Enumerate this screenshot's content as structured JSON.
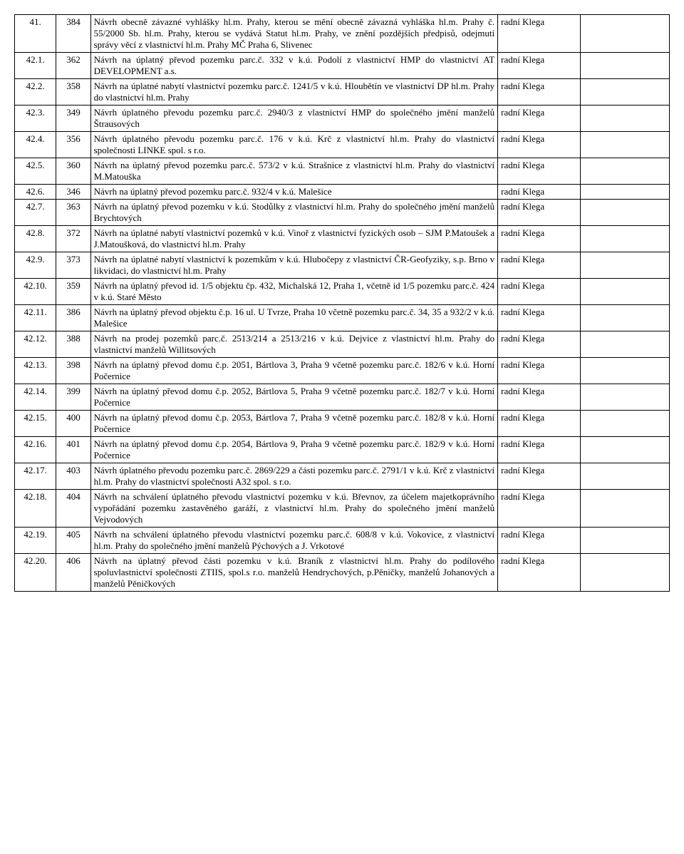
{
  "rows": [
    {
      "num": "41.",
      "id": "384",
      "desc": "Návrh obecně závazné vyhlášky hl.m. Prahy, kterou se mění obecně závazná vyhláška hl.m. Prahy č. 55/2000 Sb. hl.m. Prahy, kterou se vydává Statut hl.m. Prahy, ve znění pozdějších předpisů, odejmutí správy věcí z vlastnictví hl.m. Prahy MČ Praha 6, Slivenec",
      "who": "radní Klega"
    },
    {
      "num": "42.1.",
      "id": "362",
      "desc": "Návrh na úplatný převod pozemku parc.č. 332 v k.ú. Podolí z vlastnictví HMP do vlastnictví AT DEVELOPMENT a.s.",
      "who": "radní Klega"
    },
    {
      "num": "42.2.",
      "id": "358",
      "desc": "Návrh na úplatné nabytí vlastnictví pozemku parc.č. 1241/5 v k.ú. Hloubětín ve vlastnictví DP hl.m. Prahy do vlastnictví hl.m. Prahy",
      "who": "radní Klega"
    },
    {
      "num": "42.3.",
      "id": "349",
      "desc": "Návrh úplatného převodu pozemku parc.č. 2940/3 z vlastnictví HMP do společného jmění manželů Štrausových",
      "who": "radní Klega"
    },
    {
      "num": "42.4.",
      "id": "356",
      "desc": "Návrh úplatného převodu pozemku parc.č. 176 v k.ú. Krč z vlastnictví hl.m. Prahy do vlastnictví společnosti LINKE spol. s r.o.",
      "who": "radní Klega"
    },
    {
      "num": "42.5.",
      "id": "360",
      "desc": "Návrh na úplatný převod pozemku parc.č. 573/2 v k.ú. Strašnice z vlastnictví hl.m. Prahy do vlastnictví M.Matouška",
      "who": "radní Klega"
    },
    {
      "num": "42.6.",
      "id": "346",
      "desc": "Návrh na úplatný převod pozemku parc.č. 932/4 v k.ú. Malešice",
      "who": "radní Klega"
    },
    {
      "num": "42.7.",
      "id": "363",
      "desc": "Návrh na úplatný převod pozemku v k.ú. Stodůlky z vlastnictví hl.m. Prahy do společného jmění manželů Brychtových",
      "who": "radní Klega"
    },
    {
      "num": "42.8.",
      "id": "372",
      "desc": "Návrh na úplatné nabytí vlastnictví pozemků v k.ú. Vinoř z vlastnictví fyzických osob – SJM P.Matoušek a J.Matoušková, do vlastnictví hl.m. Prahy",
      "who": "radní Klega"
    },
    {
      "num": "42.9.",
      "id": "373",
      "desc": "Návrh na úplatné nabytí vlastnictví k pozemkům v k.ú. Hlubočepy z vlastnictví ČR-Geofyziky, s.p. Brno v likvidaci, do vlastnictví hl.m. Prahy",
      "who": "radní Klega"
    },
    {
      "num": "42.10.",
      "id": "359",
      "desc": "Návrh na úplatný převod id. 1/5 objektu čp. 432, Michalská 12, Praha 1, včetně id 1/5 pozemku parc.č. 424 v k.ú. Staré Město",
      "who": "radní Klega"
    },
    {
      "num": "42.11.",
      "id": "386",
      "desc": "Návrh na úplatný převod objektu č.p. 16 ul. U Tvrze, Praha 10 včetně pozemku parc.č. 34, 35 a 932/2 v k.ú. Malešice",
      "who": "radní Klega"
    },
    {
      "num": "42.12.",
      "id": "388",
      "desc": "Návrh na prodej pozemků parc.č. 2513/214 a 2513/216 v k.ú. Dejvice z vlastnictví hl.m. Prahy do vlastnictví manželů Willitsových",
      "who": "radní Klega"
    },
    {
      "num": "42.13.",
      "id": "398",
      "desc": "Návrh na úplatný převod domu č.p. 2051, Bártlova 3, Praha 9 včetně pozemku parc.č. 182/6 v k.ú. Horní Počernice",
      "who": "radní Klega"
    },
    {
      "num": "42.14.",
      "id": "399",
      "desc": "Návrh na úplatný převod domu č.p. 2052, Bártlova 5, Praha 9 včetně pozemku parc.č. 182/7 v k.ú. Horní Počernice",
      "who": "radní Klega"
    },
    {
      "num": "42.15.",
      "id": "400",
      "desc": "Návrh na úplatný převod domu č.p. 2053, Bártlova 7, Praha 9 včetně pozemku parc.č. 182/8 v k.ú. Horní Počernice",
      "who": "radní Klega"
    },
    {
      "num": "42.16.",
      "id": "401",
      "desc": "Návrh na úplatný převod domu č.p. 2054, Bártlova 9, Praha 9 včetně pozemku parc.č. 182/9 v k.ú. Horní Počernice",
      "who": "radní Klega"
    },
    {
      "num": "42.17.",
      "id": "403",
      "desc": "Návrh úplatného převodu pozemku parc.č. 2869/229 a části pozemku parc.č. 2791/1 v k.ú. Krč z vlastnictví hl.m. Prahy do vlastnictví společnosti A32 spol. s r.o.",
      "who": "radní Klega"
    },
    {
      "num": "42.18.",
      "id": "404",
      "desc": "Návrh na schválení úplatného převodu vlastnictví pozemku v k.ú. Břevnov, za účelem majetkoprávního vypořádání pozemku zastavěného garáží, z vlastnictví hl.m. Prahy do společného jmění manželů Vejvodových",
      "who": "radní Klega"
    },
    {
      "num": "42.19.",
      "id": "405",
      "desc": "Návrh na schválení úplatného převodu vlastnictví pozemku parc.č. 608/8 v k.ú. Vokovice, z vlastnictví hl.m. Prahy do společného jmění manželů Pýchových a J. Vrkotové",
      "who": "radní Klega"
    },
    {
      "num": "42.20.",
      "id": "406",
      "desc": "Návrh na úplatný převod části pozemku v k.ú. Braník z vlastnictví hl.m. Prahy do podílového spoluvlastnictví společnosti ZTIIS, spol.s r.o. manželů Hendrychových, p.Pěničky, manželů Johanových a manželů Pěničkových",
      "who": "radní Klega"
    }
  ]
}
